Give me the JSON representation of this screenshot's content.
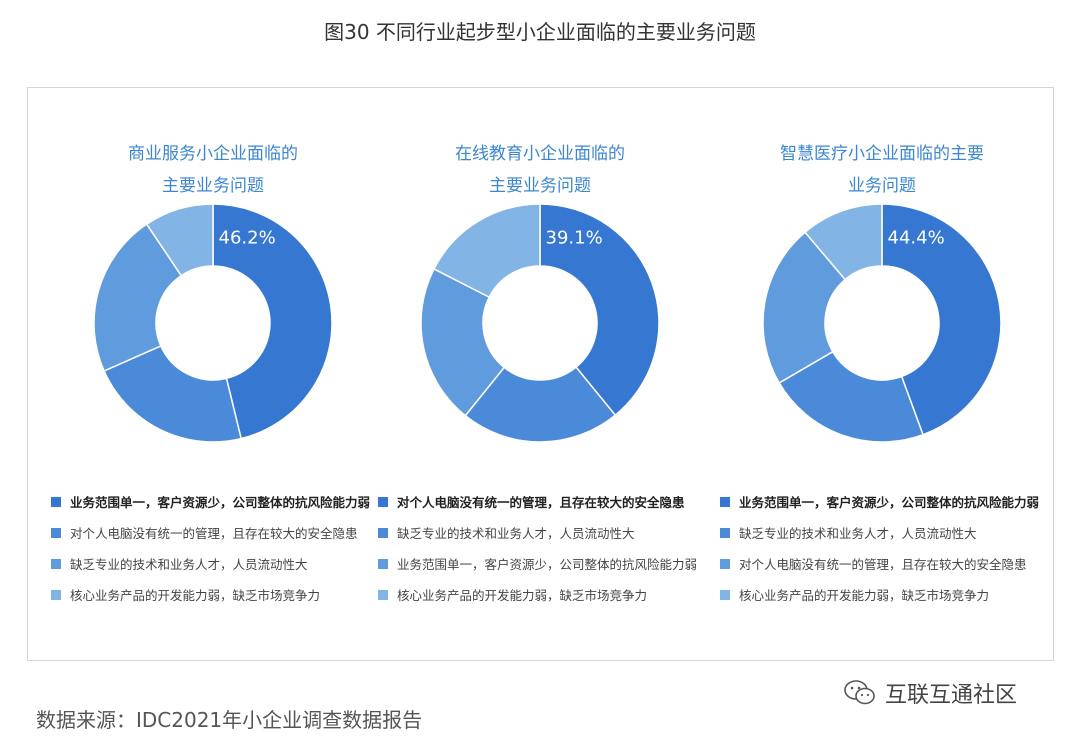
{
  "figure_title": "图30  不同行业起步型小企业面临的主要业务问题",
  "source": "数据来源：IDC2021年小企业调查数据报告",
  "watermark": "互联互通社区",
  "colors": [
    "#3678d1",
    "#4a8ad8",
    "#5f9bdd",
    "#82b4e5"
  ],
  "chart_data": [
    {
      "type": "pie",
      "title_lines": [
        "商业服务小企业面临的",
        "主要业务问题"
      ],
      "slices": [
        {
          "label": "业务范围单一，客户资源少，公司整体的抗风险能力弱",
          "value": 46.2,
          "value_label": "46.2%"
        },
        {
          "label": "对个人电脑没有统一的管理，且存在较大的安全隐患",
          "value": 22.2,
          "value_label": ""
        },
        {
          "label": "缺乏专业的技术和业务人才，人员流动性大",
          "value": 22.2,
          "value_label": ""
        },
        {
          "label": "核心业务产品的开发能力弱，缺乏市场竞争力",
          "value": 9.4,
          "value_label": ""
        }
      ]
    },
    {
      "type": "pie",
      "title_lines": [
        "在线教育小企业面临的",
        "主要业务问题"
      ],
      "slices": [
        {
          "label": "对个人电脑没有统一的管理，且存在较大的安全隐患",
          "value": 39.1,
          "value_label": "39.1%"
        },
        {
          "label": "缺乏专业的技术和业务人才，人员流动性大",
          "value": 21.7,
          "value_label": ""
        },
        {
          "label": "业务范围单一，客户资源少，公司整体的抗风险能力弱",
          "value": 21.7,
          "value_label": ""
        },
        {
          "label": "核心业务产品的开发能力弱，缺乏市场竞争力",
          "value": 17.5,
          "value_label": ""
        }
      ]
    },
    {
      "type": "pie",
      "title_lines": [
        "智慧医疗小企业面临的主要",
        "业务问题"
      ],
      "slices": [
        {
          "label": "业务范围单一，客户资源少，公司整体的抗风险能力弱",
          "value": 44.4,
          "value_label": "44.4%"
        },
        {
          "label": "缺乏专业的技术和业务人才，人员流动性大",
          "value": 22.2,
          "value_label": ""
        },
        {
          "label": "对个人电脑没有统一的管理，且存在较大的安全隐患",
          "value": 22.2,
          "value_label": ""
        },
        {
          "label": "核心业务产品的开发能力弱，缺乏市场竞争力",
          "value": 11.2,
          "value_label": ""
        }
      ]
    }
  ]
}
